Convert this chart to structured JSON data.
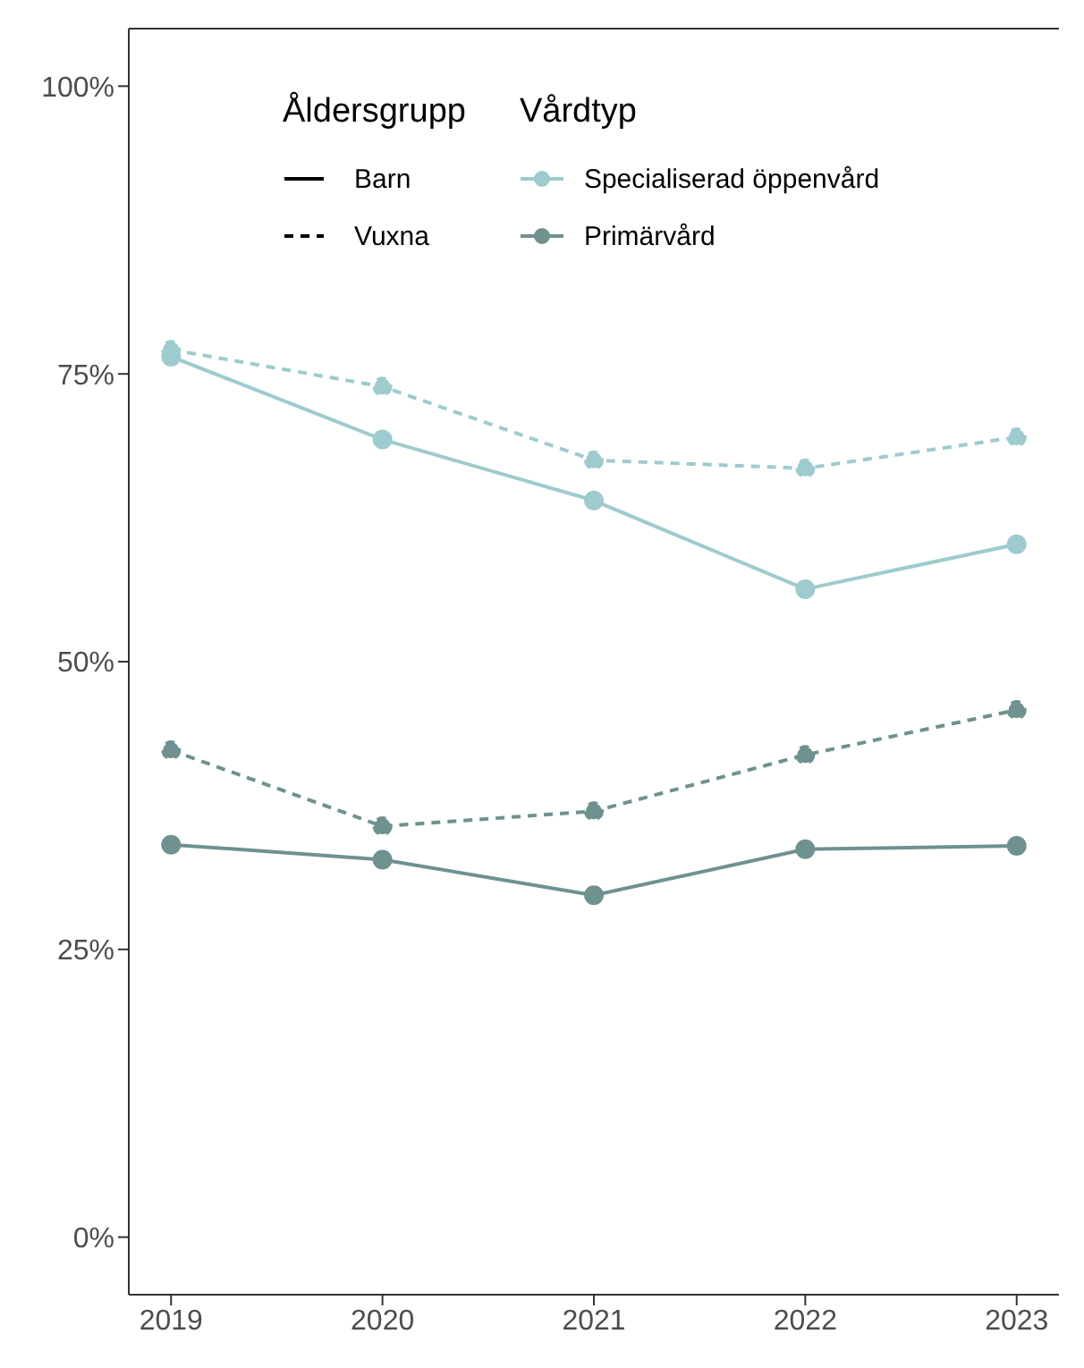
{
  "chart_data": {
    "type": "line",
    "x": [
      2019,
      2020,
      2021,
      2022,
      2023
    ],
    "series": [
      {
        "name": "Specialiserad öppenvård",
        "color": "#9ecbcd",
        "line_style": "solid",
        "values": [
          76.5,
          69.3,
          64.0,
          56.3,
          60.2
        ]
      },
      {
        "color": "#9ecbcd",
        "line_style": "dashed",
        "values": [
          77.1,
          73.9,
          67.5,
          66.8,
          69.5
        ]
      },
      {
        "color": "#6f9190",
        "line_style": "dashed",
        "values": [
          42.3,
          35.7,
          37.0,
          41.9,
          45.8
        ]
      },
      {
        "name": "Primärvård",
        "color": "#6f9190",
        "line_style": "solid",
        "values": [
          34.1,
          32.8,
          29.7,
          33.7,
          34.0
        ]
      }
    ],
    "xlim": [
      2018.8,
      2023.2
    ],
    "xticks": [
      2019,
      2020,
      2021,
      2022,
      2023
    ],
    "ylim": [
      -5,
      105
    ],
    "yticks": [
      {
        "value": 0,
        "label": "0%"
      },
      {
        "value": 25,
        "label": "25%"
      },
      {
        "value": 50,
        "label": "50%"
      },
      {
        "value": 75,
        "label": "75%"
      },
      {
        "value": 100,
        "label": "100%"
      }
    ],
    "grid": false,
    "marker": "circle",
    "legend": "top",
    "legend_title": "Vårdtyp",
    "annotations": [
      "Åldersgrupp",
      "Barn",
      "Vuxna"
    ]
  }
}
